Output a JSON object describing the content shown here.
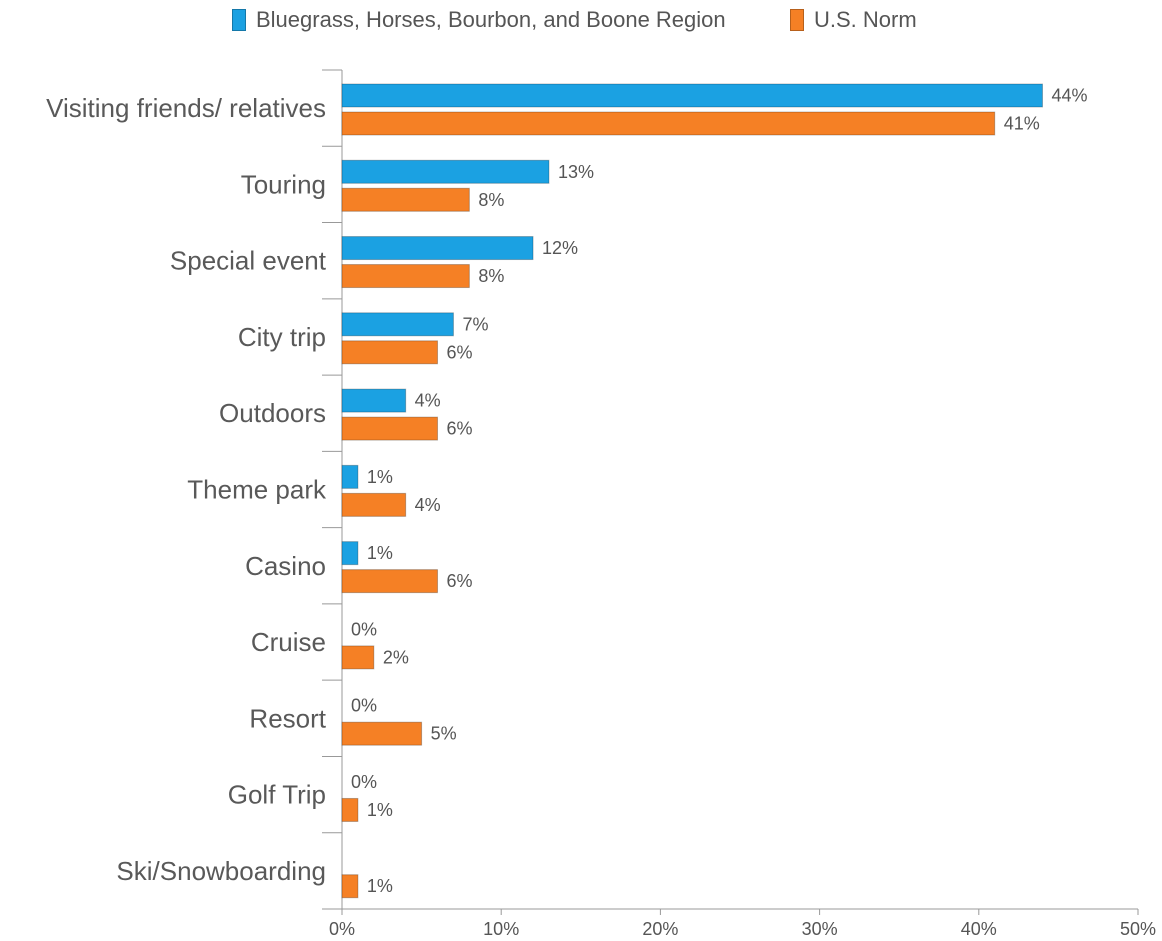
{
  "chart_data": {
    "type": "bar",
    "orientation": "horizontal",
    "categories": [
      "Visiting friends/ relatives",
      "Touring",
      "Special event",
      "City trip",
      "Outdoors",
      "Theme park",
      "Casino",
      "Cruise",
      "Resort",
      "Golf Trip",
      "Ski/Snowboarding"
    ],
    "series": [
      {
        "name": "Bluegrass, Horses, Bourbon, and Boone Region",
        "color": "#1ba1e2",
        "values": [
          44,
          13,
          12,
          7,
          4,
          1,
          1,
          0,
          0,
          0,
          null
        ],
        "labels": [
          "44%",
          "13%",
          "12%",
          "7%",
          "4%",
          "1%",
          "1%",
          "0%",
          "0%",
          "0%",
          null
        ]
      },
      {
        "name": "U.S. Norm",
        "color": "#f58025",
        "values": [
          41,
          8,
          8,
          6,
          6,
          4,
          6,
          2,
          5,
          1,
          1
        ],
        "labels": [
          "41%",
          "8%",
          "8%",
          "6%",
          "6%",
          "4%",
          "6%",
          "2%",
          "5%",
          "1%",
          "1%"
        ]
      }
    ],
    "xlim": [
      0,
      50
    ],
    "ticks": [
      "0%",
      "10%",
      "20%",
      "30%",
      "40%",
      "50%"
    ],
    "tick_values": [
      0,
      10,
      20,
      30,
      40,
      50
    ],
    "legend_position": "top",
    "grid": false
  }
}
